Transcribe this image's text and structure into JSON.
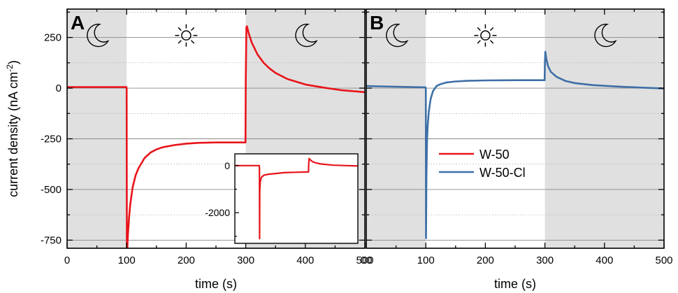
{
  "chart_data": [
    {
      "panel": "A",
      "type": "line",
      "xlabel": "time (s)",
      "ylabel": "current density (nA cm-2)",
      "ylabel_text": "current density (nA cm",
      "ylabel_sup": "-2",
      "ylabel_close": ")",
      "xlim": [
        0,
        500
      ],
      "ylim": [
        -790,
        390
      ],
      "xticks": [
        0,
        100,
        200,
        300,
        400,
        500
      ],
      "yticks": [
        250,
        0,
        -250,
        -500,
        -750
      ],
      "grid": true,
      "shaded_regions": [
        {
          "x": [
            0,
            100
          ],
          "state": "dark"
        },
        {
          "x": [
            300,
            500
          ],
          "state": "dark"
        }
      ],
      "light_region": {
        "x": [
          100,
          300
        ],
        "state": "light"
      },
      "icons": [
        "moon-icon",
        "sun-icon",
        "moon-icon"
      ],
      "series": [
        {
          "name": "W-50",
          "color": "#e8141b",
          "x": [
            0,
            99.5,
            100,
            100.3,
            101,
            102,
            104,
            106,
            110,
            115,
            120,
            130,
            140,
            150,
            160,
            180,
            200,
            220,
            250,
            275,
            299.5,
            300,
            301,
            302,
            305,
            310,
            320,
            330,
            340,
            350,
            370,
            400,
            430,
            460,
            500
          ],
          "y": [
            5,
            5,
            0,
            -800,
            -800,
            -730,
            -640,
            -575,
            -490,
            -430,
            -395,
            -345,
            -318,
            -302,
            -292,
            -281,
            -274,
            -270,
            -268,
            -268,
            -268,
            30,
            300,
            305,
            270,
            225,
            165,
            125,
            97,
            75,
            45,
            18,
            3,
            -10,
            -20
          ]
        }
      ]
    },
    {
      "panel": "A-inset",
      "type": "line",
      "xlim": [
        0,
        500
      ],
      "ylim": [
        -3300,
        500
      ],
      "yticks": [
        0,
        -2000
      ],
      "series": [
        {
          "name": "W-50",
          "color": "#e8141b",
          "x": [
            0,
            99.5,
            100,
            100.5,
            101,
            103,
            106,
            110,
            120,
            140,
            170,
            200,
            250,
            299.5,
            300,
            302,
            305,
            315,
            330,
            350,
            400,
            450,
            500
          ],
          "y": [
            0,
            0,
            -100,
            -3100,
            -1100,
            -700,
            -560,
            -470,
            -400,
            -360,
            -330,
            -300,
            -280,
            -270,
            50,
            300,
            260,
            170,
            110,
            70,
            20,
            0,
            -15
          ]
        }
      ]
    },
    {
      "panel": "B",
      "type": "line",
      "xlabel": "time (s)",
      "xlim": [
        0,
        500
      ],
      "ylim": [
        -790,
        390
      ],
      "xticks": [
        0,
        100,
        200,
        300,
        400,
        500
      ],
      "xtick_labels": [
        "00",
        "100",
        "200",
        "300",
        "400",
        "500"
      ],
      "grid": true,
      "shaded_regions": [
        {
          "x": [
            0,
            100
          ],
          "state": "dark"
        },
        {
          "x": [
            300,
            500
          ],
          "state": "dark"
        }
      ],
      "light_region": {
        "x": [
          100,
          300
        ],
        "state": "light"
      },
      "icons": [
        "moon-icon",
        "sun-icon",
        "moon-icon"
      ],
      "series": [
        {
          "name": "W-50-Cl",
          "color": "#3e6fa7",
          "x": [
            0,
            50,
            99.5,
            100,
            100.4,
            101,
            102,
            103,
            105,
            108,
            112,
            118,
            125,
            135,
            150,
            170,
            200,
            250,
            299.5,
            300,
            300.7,
            302,
            305,
            310,
            320,
            335,
            350,
            380,
            420,
            460,
            500
          ],
          "y": [
            10,
            7,
            4,
            0,
            -740,
            -430,
            -265,
            -190,
            -115,
            -55,
            -15,
            10,
            20,
            28,
            33,
            36,
            38,
            39,
            39,
            120,
            180,
            150,
            110,
            80,
            55,
            35,
            25,
            15,
            8,
            3,
            -2
          ]
        }
      ],
      "legend": {
        "placement": "center",
        "entries": [
          {
            "name": "W-50",
            "color": "#e8141b"
          },
          {
            "name": "W-50-Cl",
            "color": "#3e6fa7"
          }
        ]
      }
    }
  ]
}
